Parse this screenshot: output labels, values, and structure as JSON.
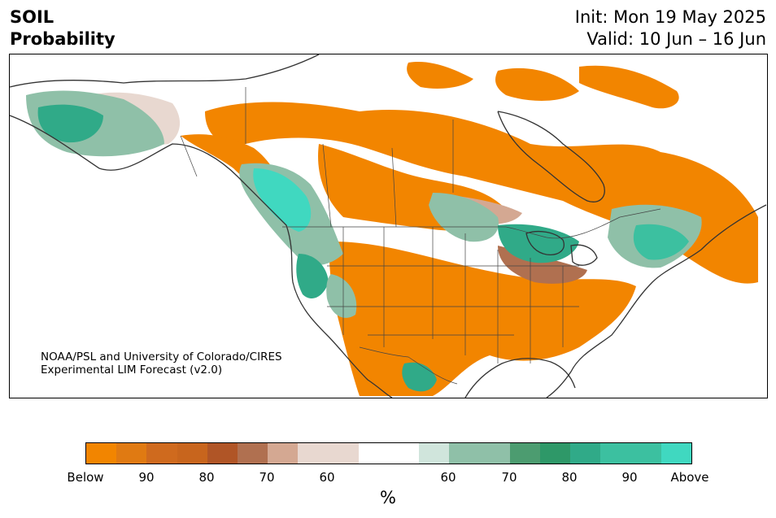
{
  "title": {
    "variable": "SOIL",
    "quantity": "Probability",
    "init": "Init: Mon 19 May 2025",
    "valid": "Valid: 10 Jun – 16 Jun"
  },
  "credit": {
    "line1": "NOAA/PSL and University of Colorado/CIRES",
    "line2": "Experimental LIM Forecast (v2.0)"
  },
  "colorbar": {
    "colors": [
      "#f28500",
      "#e07a12",
      "#cf6a1e",
      "#c8651d",
      "#b05526",
      "#b07050",
      "#d4a892",
      "#e8d8d0",
      "#e8d8d0",
      "#ffffff",
      "#ffffff",
      "#d0e5dc",
      "#8fc0a8",
      "#8fc0a8",
      "#4c9c70",
      "#2e9868",
      "#30aa88",
      "#3cc0a0",
      "#3cc0a0",
      "#40d8c0"
    ],
    "labels": [
      "Below",
      "90",
      "80",
      "70",
      "60",
      "60",
      "70",
      "80",
      "90",
      "Above"
    ],
    "unit": "%"
  },
  "legend_colors": {
    "below": "#f28500",
    "above": "#40d8c0"
  }
}
